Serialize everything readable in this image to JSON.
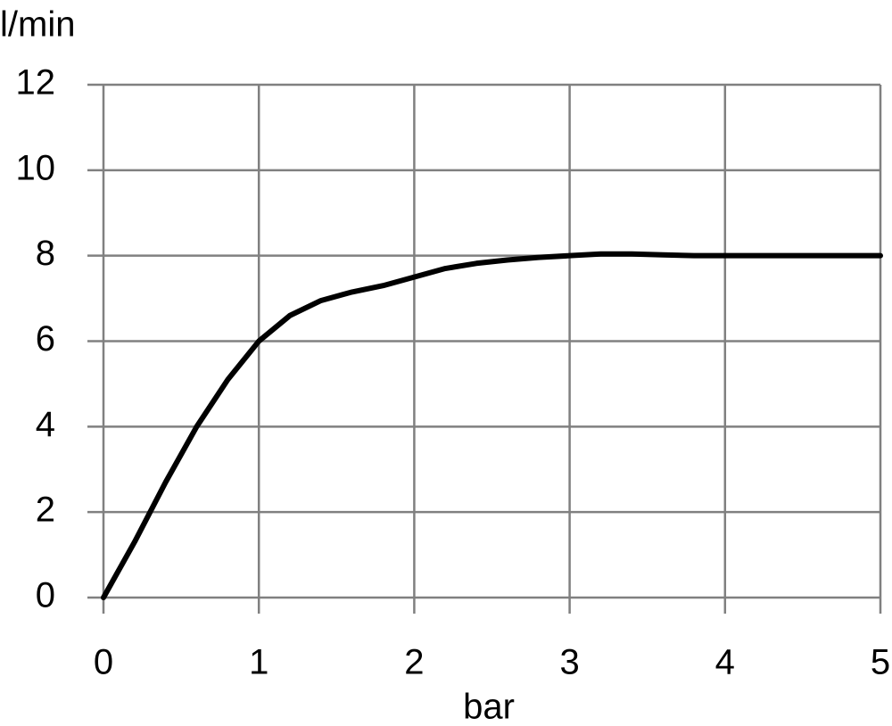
{
  "chart_data": {
    "type": "line",
    "y_label": "l/min",
    "x_label": "bar",
    "x": [
      0,
      0.2,
      0.4,
      0.6,
      0.8,
      1.0,
      1.2,
      1.4,
      1.6,
      1.8,
      2.0,
      2.2,
      2.4,
      2.6,
      2.8,
      3.0,
      3.2,
      3.4,
      3.6,
      3.8,
      4.0,
      4.5,
      5.0
    ],
    "series": [
      {
        "color": "#000000",
        "values": [
          0,
          1.3,
          2.7,
          4.0,
          5.1,
          6.0,
          6.6,
          6.95,
          7.15,
          7.3,
          7.5,
          7.7,
          7.82,
          7.9,
          7.96,
          8.0,
          8.04,
          8.04,
          8.02,
          8.0,
          8.0,
          8.0,
          8.0
        ]
      }
    ],
    "xlim": [
      0,
      5
    ],
    "xticks": [
      0,
      1,
      2,
      3,
      4,
      5
    ],
    "ylim": [
      0,
      12
    ],
    "yticks": [
      0,
      2,
      4,
      6,
      8,
      10,
      12
    ],
    "grid": true
  }
}
